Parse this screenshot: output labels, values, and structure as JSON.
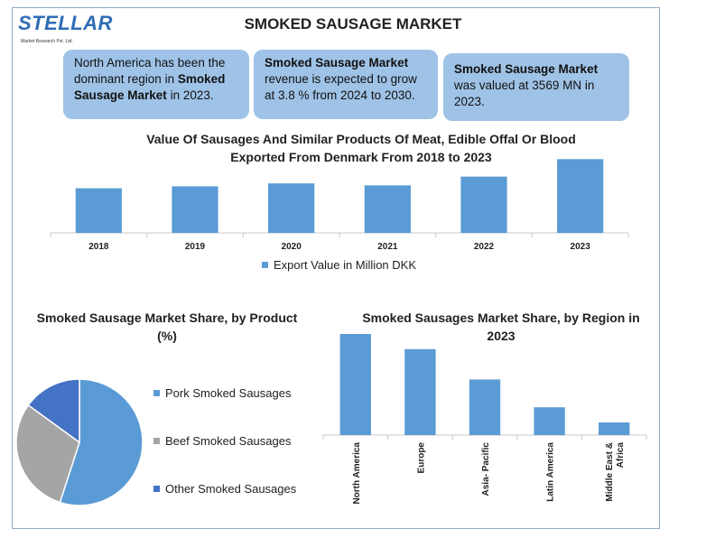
{
  "header": {
    "logo_text": "STELLAR",
    "logo_sub": "Market Research Pvt. Ltd.",
    "title": "SMOKED SAUSAGE MARKET"
  },
  "info_boxes": [
    {
      "pre": "North America has been the dominant region in ",
      "bold": "Smoked Sausage Market",
      "post": " in 2023."
    },
    {
      "pre": "",
      "bold": "Smoked Sausage Market",
      "post": " revenue is expected to grow at 3.8 % from 2024 to 2030."
    },
    {
      "pre": "",
      "bold": "Smoked Sausage Market",
      "post": " was valued at 3569 MN in 2023."
    }
  ],
  "colors": {
    "bar": "#5b9bd5",
    "pork": "#5b9bd5",
    "beef": "#a5a5a5",
    "other": "#4472c4"
  },
  "chart_data": [
    {
      "type": "bar",
      "title": "Value Of Sausages And Similar Products Of Meat, Edible Offal Or Blood Exported From Denmark From 2018 to 2023",
      "categories": [
        "2018",
        "2019",
        "2020",
        "2021",
        "2022",
        "2023"
      ],
      "series": [
        {
          "name": "Export Value in Million DKK",
          "values": [
            46,
            48,
            51,
            49,
            58,
            76
          ]
        }
      ],
      "ylim": [
        0,
        80
      ],
      "legend": "bottom",
      "grid": false
    },
    {
      "type": "pie",
      "title": "Smoked Sausage Market Share, by Product (%)",
      "categories": [
        "Pork Smoked Sausages",
        "Beef Smoked Sausages",
        "Other Smoked Sausages"
      ],
      "values": [
        55,
        30,
        15
      ],
      "legend": "right"
    },
    {
      "type": "bar",
      "title": "Smoked Sausages Market Share, by Region in 2023",
      "categories": [
        "North America",
        "Europe",
        "Asia- Pacific",
        "Latin America",
        "Middle East & Africa"
      ],
      "values": [
        40,
        34,
        22,
        11,
        5
      ],
      "ylim": [
        0,
        40
      ],
      "grid": false
    }
  ]
}
